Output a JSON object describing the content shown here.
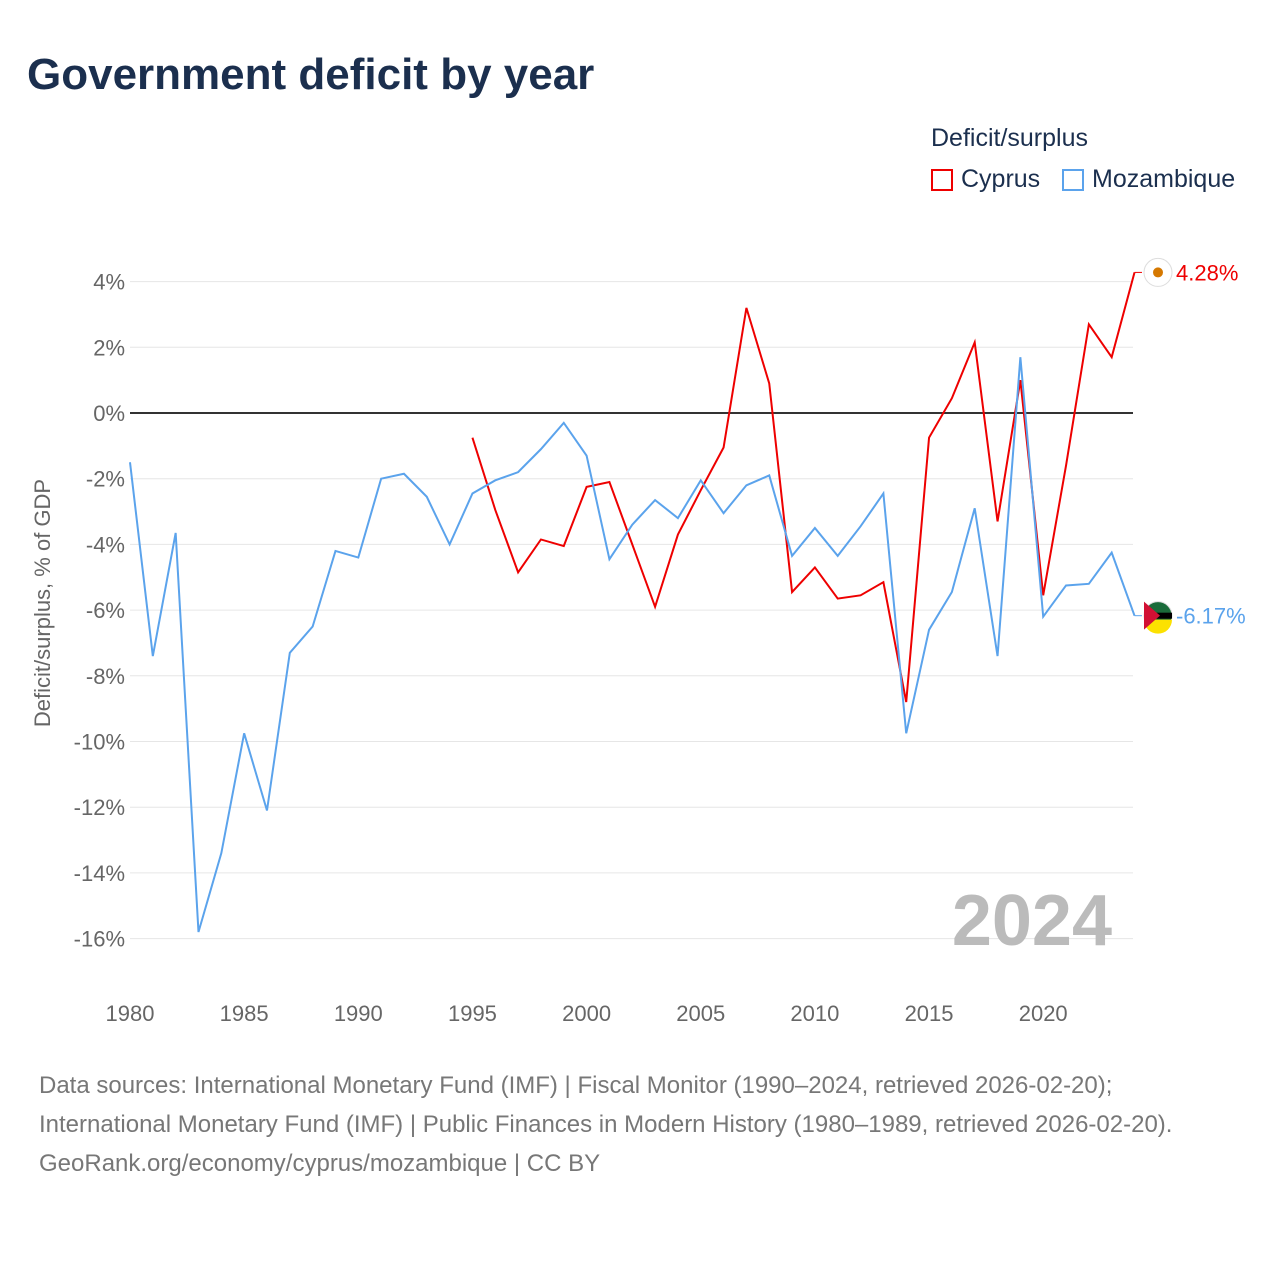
{
  "title": "Government deficit by year",
  "legend": {
    "title": "Deficit/surplus",
    "items": [
      "Cyprus",
      "Mozambique"
    ]
  },
  "colors": {
    "Cyprus": "#ee0000",
    "Mozambique": "#5ba3ec"
  },
  "footer": {
    "line1": "Data sources: International Monetary Fund (IMF) | Fiscal Monitor (1990–2024, retrieved 2026-02-20); International Monetary Fund (IMF) | Public Finances in Modern History (1980–1989, retrieved 2026-02-20).",
    "line2": "GeoRank.org/economy/cyprus/mozambique | CC BY"
  },
  "chart_data": {
    "type": "line",
    "title": "Government deficit by year",
    "ylabel": "Deficit/surplus, % of GDP",
    "xlim": [
      1980,
      2024
    ],
    "ylim": [
      -17,
      5
    ],
    "yticks": [
      4,
      2,
      0,
      -2,
      -4,
      -6,
      -8,
      -10,
      -12,
      -14,
      -16
    ],
    "ytick_labels": [
      "4%",
      "2%",
      "0%",
      "-2%",
      "-4%",
      "-6%",
      "-8%",
      "-10%",
      "-12%",
      "-14%",
      "-16%"
    ],
    "xticks": [
      1980,
      1985,
      1990,
      1995,
      2000,
      2005,
      2010,
      2015,
      2020
    ],
    "xtick_labels": [
      "1980",
      "1985",
      "1990",
      "1995",
      "2000",
      "2005",
      "2010",
      "2015",
      "2020"
    ],
    "year_watermark": "2024",
    "series": [
      {
        "name": "Cyprus",
        "start": 1995,
        "end_label": "4.28%",
        "values": [
          -0.75,
          -2.95,
          -4.85,
          -3.85,
          -4.05,
          -2.25,
          -2.1,
          -4.0,
          -5.9,
          -3.7,
          -2.35,
          -1.05,
          3.2,
          0.9,
          -5.45,
          -4.7,
          -5.65,
          -5.55,
          -5.15,
          -8.8,
          -0.75,
          0.45,
          2.15,
          -3.3,
          1.0,
          -5.55,
          -1.6,
          2.7,
          1.7,
          4.28
        ]
      },
      {
        "name": "Mozambique",
        "start": 1980,
        "end_label": "-6.17%",
        "values": [
          -1.5,
          -7.4,
          -3.65,
          -15.8,
          -13.4,
          -9.75,
          -12.1,
          -7.3,
          -6.5,
          -4.2,
          -4.4,
          -2.0,
          -1.85,
          -2.55,
          -4.0,
          -2.45,
          -2.05,
          -1.8,
          -1.1,
          -0.3,
          -1.3,
          -4.45,
          -3.4,
          -2.65,
          -3.2,
          -2.05,
          -3.05,
          -2.2,
          -1.9,
          -4.35,
          -3.5,
          -4.35,
          -3.45,
          -2.45,
          -9.75,
          -6.6,
          -5.45,
          -2.9,
          -7.4,
          1.7,
          -6.2,
          -5.25,
          -5.2,
          -4.25,
          -6.17
        ]
      }
    ]
  }
}
